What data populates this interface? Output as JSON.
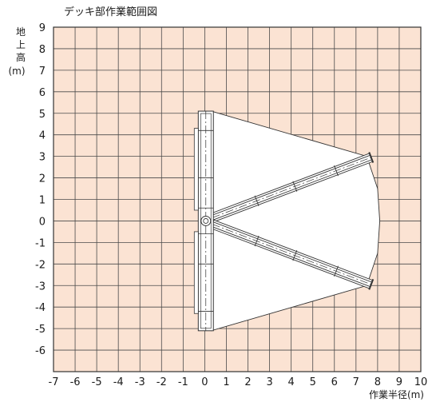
{
  "chart_data": {
    "type": "diagram",
    "title": "デッキ部作業範囲図",
    "xlabel": "作業半径(m)",
    "ylabel_chars": [
      "地",
      "上",
      "高",
      "(m)"
    ],
    "x_ticks": [
      "-7",
      "-6",
      "-5",
      "-4",
      "-3",
      "-2",
      "-1",
      "0",
      "1",
      "2",
      "3",
      "4",
      "5",
      "6",
      "7",
      "8",
      "9",
      "10"
    ],
    "y_ticks": [
      "9",
      "8",
      "7",
      "6",
      "5",
      "4",
      "3",
      "2",
      "1",
      "0",
      "-1",
      "-2",
      "-3",
      "-4",
      "-5",
      "-6"
    ],
    "xlim": [
      -7,
      10
    ],
    "ylim": [
      -7,
      9
    ],
    "grid": true,
    "grid_color": "#4a4a4a",
    "background_color": "#fbe3d3",
    "envelope_color": "#ffffff",
    "envelope": [
      [
        0.3,
        5.1
      ],
      [
        7.5,
        3.0
      ],
      [
        8.0,
        1.5
      ],
      [
        8.1,
        0.0
      ],
      [
        8.0,
        -1.5
      ],
      [
        7.5,
        -3.0
      ],
      [
        0.3,
        -5.1
      ]
    ],
    "booms": [
      {
        "from": [
          0.35,
          0.15
        ],
        "to": [
          7.7,
          2.95
        ]
      },
      {
        "from": [
          0.35,
          -0.15
        ],
        "to": [
          7.7,
          -2.95
        ]
      }
    ],
    "deck_x": [
      -0.3,
      0.4
    ],
    "deck_y": [
      -5.1,
      5.1
    ]
  }
}
